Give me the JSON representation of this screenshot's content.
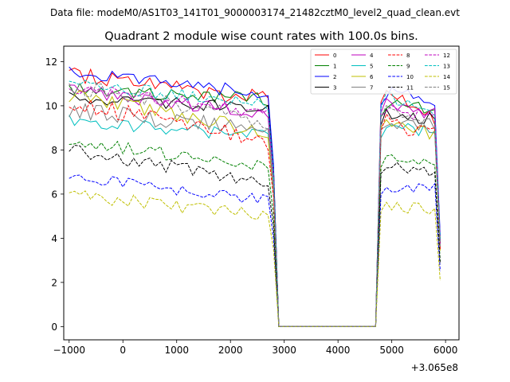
{
  "chart_data": {
    "type": "line",
    "suptitle": "Data file: modeM0/AS1T03_141T01_9000003174_21482cztM0_level2_quad_clean.evt",
    "title": "Quadrant 2 module wise count rates with 100.0s bins.",
    "xlabel": "",
    "ylabel": "",
    "x_offset_label": "+3.065e8",
    "xlim": [
      -1100,
      6250
    ],
    "ylim": [
      -0.6,
      12.7
    ],
    "xticks": [
      -1000,
      0,
      1000,
      2000,
      3000,
      4000,
      5000,
      6000
    ],
    "xtick_labels": [
      "−1000",
      "0",
      "1000",
      "2000",
      "3000",
      "4000",
      "5000",
      "6000"
    ],
    "yticks": [
      0,
      2,
      4,
      6,
      8,
      10,
      12
    ],
    "ytick_labels": [
      "0",
      "2",
      "4",
      "6",
      "8",
      "10",
      "12"
    ],
    "legend": {
      "placement": "top-right",
      "columns": 4
    },
    "x_first": -1000,
    "x_step": 100,
    "gap_start": 2900,
    "gap_end": 4700,
    "series": [
      {
        "name": "0",
        "color": "#ff0000",
        "dash": "solid",
        "pre_start": 11.5,
        "pre_end": 10.3,
        "post_start": 10.7,
        "post_end": 9.5,
        "noise": 0.4
      },
      {
        "name": "1",
        "color": "#008000",
        "dash": "solid",
        "pre_start": 10.8,
        "pre_end": 10.3,
        "post_start": 10.0,
        "post_end": 9.8,
        "noise": 0.3
      },
      {
        "name": "2",
        "color": "#0000ff",
        "dash": "solid",
        "pre_start": 11.6,
        "pre_end": 10.5,
        "post_start": 10.6,
        "post_end": 10.3,
        "noise": 0.3
      },
      {
        "name": "3",
        "color": "#000000",
        "dash": "solid",
        "pre_start": 10.4,
        "pre_end": 9.8,
        "post_start": 9.6,
        "post_end": 9.4,
        "noise": 0.3
      },
      {
        "name": "4",
        "color": "#bf00bf",
        "dash": "solid",
        "pre_start": 10.7,
        "pre_end": 9.6,
        "post_start": 10.2,
        "post_end": 9.6,
        "noise": 0.3
      },
      {
        "name": "5",
        "color": "#00bfbf",
        "dash": "solid",
        "pre_start": 9.3,
        "pre_end": 8.6,
        "post_start": 9.0,
        "post_end": 8.8,
        "noise": 0.3
      },
      {
        "name": "6",
        "color": "#bfbf00",
        "dash": "solid",
        "pre_start": 10.5,
        "pre_end": 8.8,
        "post_start": 9.5,
        "post_end": 8.6,
        "noise": 0.35
      },
      {
        "name": "7",
        "color": "#808080",
        "dash": "solid",
        "pre_start": 9.8,
        "pre_end": 8.9,
        "post_start": 9.4,
        "post_end": 9.0,
        "noise": 0.4
      },
      {
        "name": "8",
        "color": "#ff0000",
        "dash": "dashed",
        "pre_start": 10.2,
        "pre_end": 8.4,
        "post_start": 9.3,
        "post_end": 8.7,
        "noise": 0.4
      },
      {
        "name": "9",
        "color": "#008000",
        "dash": "dashed",
        "pre_start": 8.4,
        "pre_end": 7.2,
        "post_start": 7.6,
        "post_end": 7.4,
        "noise": 0.3
      },
      {
        "name": "10",
        "color": "#0000ff",
        "dash": "dashed",
        "pre_start": 6.8,
        "pre_end": 5.7,
        "post_start": 6.3,
        "post_end": 6.3,
        "noise": 0.25
      },
      {
        "name": "11",
        "color": "#000000",
        "dash": "dashed",
        "pre_start": 8.0,
        "pre_end": 6.5,
        "post_start": 7.3,
        "post_end": 7.1,
        "noise": 0.3
      },
      {
        "name": "12",
        "color": "#bf00bf",
        "dash": "dashed",
        "pre_start": 10.8,
        "pre_end": 9.7,
        "post_start": 10.0,
        "post_end": 9.4,
        "noise": 0.3
      },
      {
        "name": "13",
        "color": "#00bfbf",
        "dash": "dashed",
        "pre_start": 11.1,
        "pre_end": 10.0,
        "post_start": 10.4,
        "post_end": 9.7,
        "noise": 0.3
      },
      {
        "name": "14",
        "color": "#bfbf00",
        "dash": "dashed",
        "pre_start": 6.0,
        "pre_end": 5.0,
        "post_start": 5.5,
        "post_end": 5.2,
        "noise": 0.3
      },
      {
        "name": "15",
        "color": "#808080",
        "dash": "dashed",
        "pre_start": 10.9,
        "pre_end": 9.3,
        "post_start": 10.0,
        "post_end": 9.0,
        "noise": 0.35
      }
    ]
  }
}
